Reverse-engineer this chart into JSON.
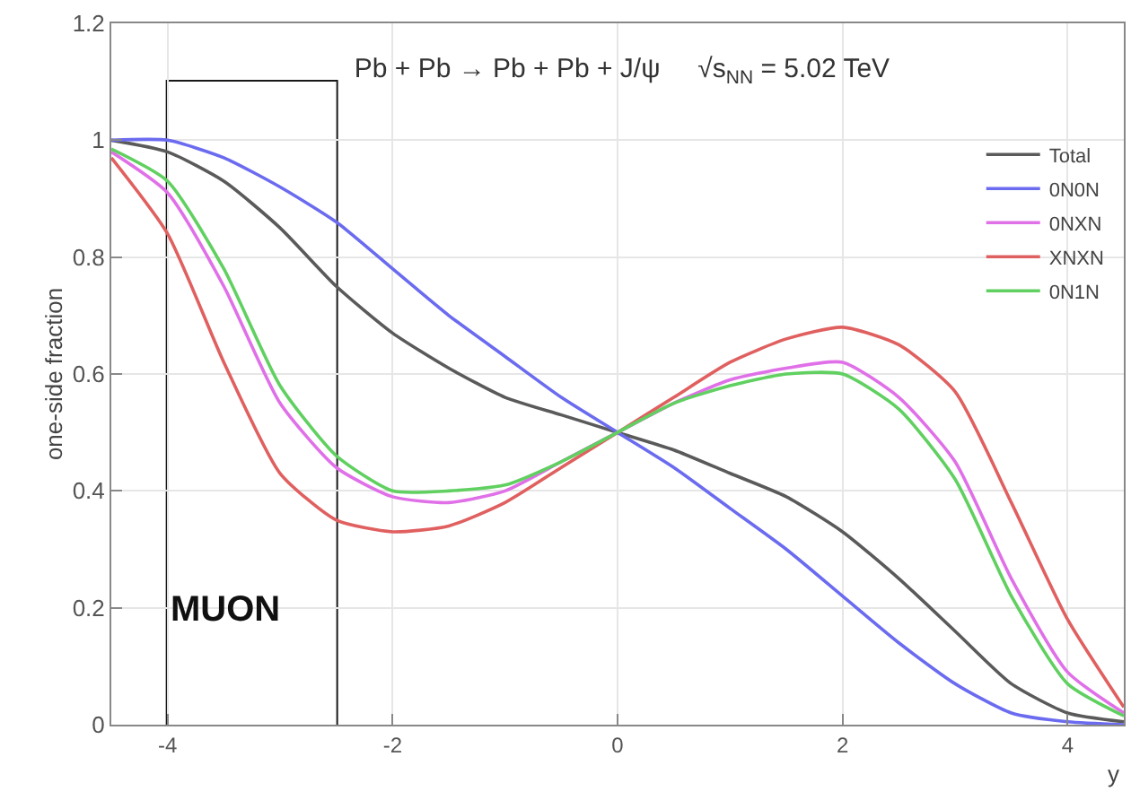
{
  "chart_data": {
    "type": "line",
    "title": "Pb + Pb → Pb + Pb + J/ψ     √s$_{NN}$ = 5.02 TeV",
    "xlabel": "y",
    "ylabel": "one-side fraction",
    "x": [
      -4.5,
      -4,
      -3.5,
      -3,
      -2.5,
      -2,
      -1.5,
      -1,
      -0.5,
      0,
      0.5,
      1,
      1.5,
      2,
      2.5,
      3,
      3.5,
      4,
      4.5
    ],
    "series": [
      {
        "name": "Total",
        "color": "#5a5a5a",
        "values": [
          1.0,
          0.98,
          0.93,
          0.85,
          0.75,
          0.67,
          0.61,
          0.56,
          0.53,
          0.5,
          0.47,
          0.43,
          0.39,
          0.33,
          0.25,
          0.16,
          0.07,
          0.02,
          0.005
        ]
      },
      {
        "name": "0N0N",
        "color": "#6b6bf0",
        "values": [
          1.0,
          1.0,
          0.97,
          0.92,
          0.86,
          0.78,
          0.7,
          0.63,
          0.56,
          0.5,
          0.44,
          0.37,
          0.3,
          0.22,
          0.14,
          0.07,
          0.02,
          0.005,
          0.0
        ]
      },
      {
        "name": "0NXN",
        "color": "#e070e8",
        "values": [
          0.98,
          0.91,
          0.75,
          0.55,
          0.44,
          0.39,
          0.38,
          0.4,
          0.45,
          0.5,
          0.55,
          0.59,
          0.61,
          0.62,
          0.56,
          0.45,
          0.25,
          0.09,
          0.02
        ]
      },
      {
        "name": "XNXN",
        "color": "#e06060",
        "values": [
          0.97,
          0.84,
          0.62,
          0.43,
          0.35,
          0.33,
          0.34,
          0.38,
          0.44,
          0.5,
          0.56,
          0.62,
          0.66,
          0.68,
          0.65,
          0.57,
          0.38,
          0.18,
          0.03
        ]
      },
      {
        "name": "0N1N",
        "color": "#60d060",
        "values": [
          0.985,
          0.93,
          0.78,
          0.58,
          0.46,
          0.4,
          0.4,
          0.41,
          0.45,
          0.5,
          0.55,
          0.58,
          0.6,
          0.6,
          0.54,
          0.42,
          0.22,
          0.07,
          0.015
        ]
      }
    ],
    "xlim": [
      -4.5,
      4.5
    ],
    "xticks": [
      -4,
      -2,
      0,
      2,
      4
    ],
    "ylim": [
      0,
      1.2
    ],
    "yticks": [
      0,
      0.2,
      0.4,
      0.6,
      0.8,
      1,
      1.2
    ],
    "bands": [
      {
        "axis": "x",
        "from": -4,
        "to": -2.5,
        "label": "MUON",
        "color": "#000000"
      }
    ],
    "grid": true,
    "legend": "top right",
    "line_style": "solid",
    "marker": "none"
  }
}
